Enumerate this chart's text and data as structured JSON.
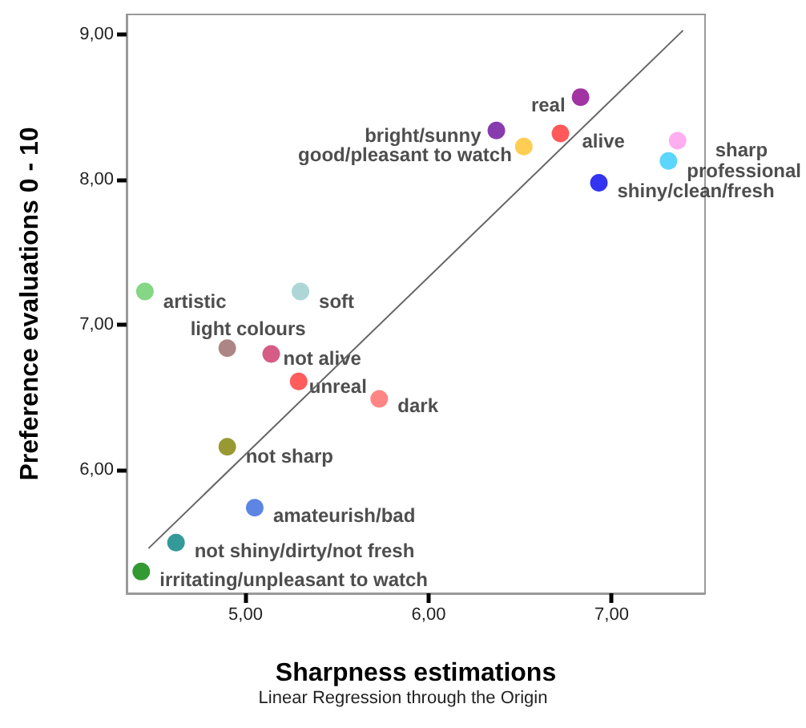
{
  "chart_data": {
    "type": "scatter",
    "xlabel": "Sharpness estimations",
    "ylabel": "Preference evaluations 0 - 10",
    "annotations": [
      "Linear Regression through the Origin"
    ],
    "xlim": [
      4.35,
      7.51
    ],
    "ylim": [
      5.15,
      9.14
    ],
    "xticks": [
      {
        "value": 5,
        "label": "5,00"
      },
      {
        "value": 6,
        "label": "6,00"
      },
      {
        "value": 7,
        "label": "7,00"
      }
    ],
    "yticks": [
      {
        "value": 6,
        "label": "6,00"
      },
      {
        "value": 7,
        "label": "7,00"
      },
      {
        "value": 8,
        "label": "8,00"
      },
      {
        "value": 9,
        "label": "9,00"
      }
    ],
    "grid": false,
    "legend": false,
    "marker": "circle",
    "series": [
      {
        "name": "real",
        "color": "#8b008b",
        "x": [
          6.83
        ],
        "values": [
          8.57
        ]
      },
      {
        "name": "bright/sunny",
        "color": "#6a0a9a",
        "x": [
          6.37
        ],
        "values": [
          8.34
        ]
      },
      {
        "name": "good/pleasant to watch",
        "color": "#ffc125",
        "x": [
          6.52
        ],
        "values": [
          8.23
        ]
      },
      {
        "name": "alive",
        "color": "#ff3030",
        "x": [
          6.72
        ],
        "values": [
          8.32
        ]
      },
      {
        "name": "sharp",
        "color": "#ff99ee",
        "x": [
          7.36
        ],
        "values": [
          8.27
        ]
      },
      {
        "name": "professional",
        "color": "#33ccff",
        "x": [
          7.31
        ],
        "values": [
          8.13
        ]
      },
      {
        "name": "shiny/clean/fresh",
        "color": "#0000ee",
        "x": [
          6.93
        ],
        "values": [
          7.98
        ]
      },
      {
        "name": "artistic",
        "color": "#66cc66",
        "x": [
          4.45
        ],
        "values": [
          7.23
        ]
      },
      {
        "name": "soft",
        "color": "#99cccc",
        "x": [
          5.3
        ],
        "values": [
          7.23
        ]
      },
      {
        "name": "light colours",
        "color": "#996666",
        "x": [
          4.9
        ],
        "values": [
          6.84
        ]
      },
      {
        "name": "not alive",
        "color": "#cc3366",
        "x": [
          5.14
        ],
        "values": [
          6.8
        ]
      },
      {
        "name": "unreal",
        "color": "#ff3333",
        "x": [
          5.29
        ],
        "values": [
          6.61
        ]
      },
      {
        "name": "dark",
        "color": "#ff6666",
        "x": [
          5.73
        ],
        "values": [
          6.49
        ]
      },
      {
        "name": "not sharp",
        "color": "#808000",
        "x": [
          4.9
        ],
        "values": [
          6.16
        ]
      },
      {
        "name": "amateurish/bad",
        "color": "#3366dd",
        "x": [
          5.05
        ],
        "values": [
          5.74
        ]
      },
      {
        "name": "not shiny/dirty/not fresh",
        "color": "#008080",
        "x": [
          4.62
        ],
        "values": [
          5.5
        ]
      },
      {
        "name": "irritating/unpleasant to watch",
        "color": "#008000",
        "x": [
          4.43
        ],
        "values": [
          5.3
        ]
      },
      {
        "type": "line",
        "color": "#666666",
        "marker": "none",
        "line_style": "solid",
        "x": [
          4.47,
          7.39
        ],
        "values": [
          5.46,
          9.03
        ]
      }
    ]
  }
}
